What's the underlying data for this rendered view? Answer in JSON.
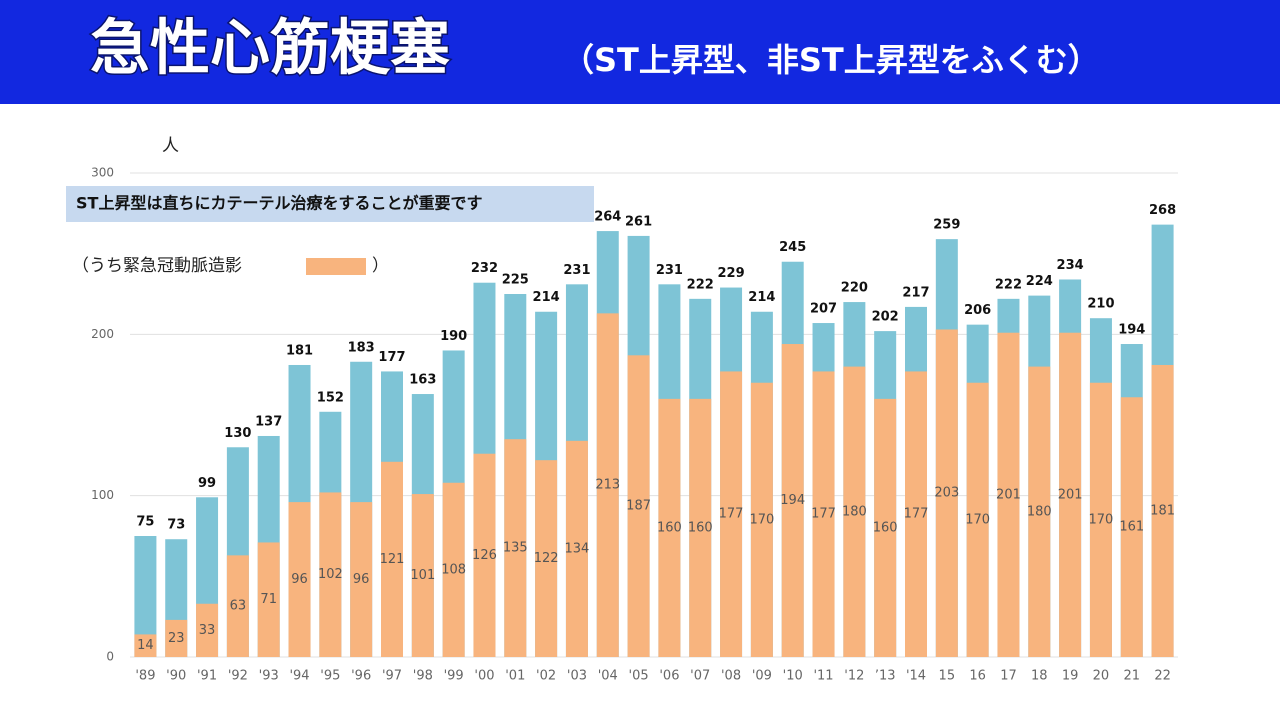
{
  "chart_data": {
    "type": "bar",
    "title": "急性心筋梗塞",
    "subtitle": "（ST上昇型、非ST上昇型をふくむ）",
    "y_label": "人",
    "annotation": "ST上昇型は直ちにカテーテル治療をすることが重要です",
    "legend_close": "）",
    "categories": [
      "'89",
      "'90",
      "'91",
      "'92",
      "'93",
      "'94",
      "'95",
      "'96",
      "'97",
      "'98",
      "'99",
      "'00",
      "'01",
      "'02",
      "'03",
      "'04",
      "'05",
      "'06",
      "'07",
      "'08",
      "'09",
      "'10",
      "'11",
      "'12",
      "’13",
      "'14",
      "15",
      "16",
      "17",
      "18",
      "19",
      "20",
      "21",
      "22"
    ],
    "series": [
      {
        "color": "#7ec4d6",
        "values": [
          75,
          73,
          99,
          130,
          137,
          181,
          152,
          183,
          177,
          163,
          190,
          232,
          225,
          214,
          231,
          264,
          261,
          231,
          222,
          229,
          214,
          245,
          207,
          220,
          202,
          217,
          259,
          206,
          222,
          224,
          234,
          210,
          194,
          268
        ]
      },
      {
        "name": "（うち緊急冠動脈造影",
        "color": "#f8b47e",
        "values": [
          14,
          23,
          33,
          63,
          71,
          96,
          102,
          96,
          121,
          101,
          108,
          126,
          135,
          122,
          134,
          213,
          187,
          160,
          160,
          177,
          170,
          194,
          177,
          180,
          160,
          177,
          203,
          170,
          201,
          180,
          201,
          170,
          161,
          181
        ]
      }
    ],
    "ylim": [
      0,
      300
    ],
    "yticks": [
      0,
      100,
      200,
      300
    ],
    "grid": true
  }
}
